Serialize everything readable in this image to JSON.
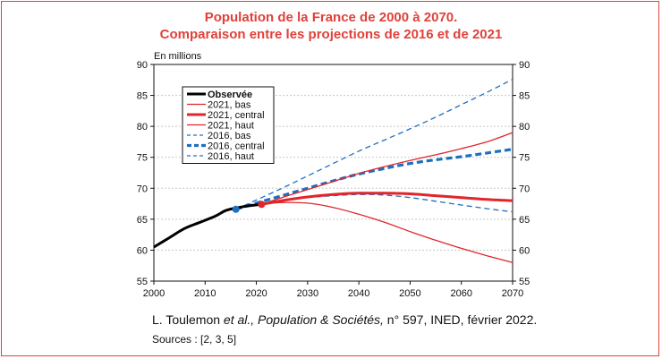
{
  "chart_data": {
    "type": "line",
    "title": "Population de la France de 2000 à 2070.",
    "subtitle": "Comparaison entre les projections de 2016 et de 2021",
    "ylabel": "En millions",
    "xlim": [
      2000,
      2070
    ],
    "ylim": [
      55,
      90
    ],
    "xticks": [
      "2000",
      "2010",
      "2020",
      "2030",
      "2040",
      "2050",
      "2060",
      "2070"
    ],
    "yticks": [
      "55",
      "60",
      "65",
      "70",
      "75",
      "80",
      "85",
      "90"
    ],
    "legend_position": "top-left",
    "series": [
      {
        "name": "Observée",
        "color": "#000000",
        "style": "solid",
        "weight": "thick",
        "x": [
          2000,
          2003,
          2006,
          2009,
          2012,
          2014,
          2016,
          2018,
          2021
        ],
        "y": [
          60.5,
          62.0,
          63.5,
          64.5,
          65.5,
          66.4,
          66.8,
          67.1,
          67.4
        ]
      },
      {
        "name": "2021, bas",
        "color": "#e0262b",
        "style": "solid",
        "weight": "thin",
        "x": [
          2021,
          2025,
          2030,
          2035,
          2040,
          2045,
          2050,
          2055,
          2060,
          2065,
          2070
        ],
        "y": [
          67.4,
          67.7,
          67.6,
          66.9,
          65.8,
          64.5,
          63.0,
          61.6,
          60.3,
          59.1,
          58.0
        ]
      },
      {
        "name": "2021, central",
        "color": "#e0262b",
        "style": "solid",
        "weight": "thick",
        "x": [
          2021,
          2025,
          2030,
          2035,
          2040,
          2045,
          2050,
          2055,
          2060,
          2065,
          2070
        ],
        "y": [
          67.4,
          68.0,
          68.6,
          69.0,
          69.2,
          69.2,
          69.1,
          68.8,
          68.5,
          68.2,
          68.0
        ]
      },
      {
        "name": "2021, haut",
        "color": "#e0262b",
        "style": "solid",
        "weight": "thin",
        "x": [
          2021,
          2025,
          2030,
          2035,
          2040,
          2045,
          2050,
          2055,
          2060,
          2065,
          2070
        ],
        "y": [
          67.4,
          68.5,
          69.8,
          71.1,
          72.4,
          73.5,
          74.5,
          75.4,
          76.4,
          77.5,
          79.0
        ]
      },
      {
        "name": "2016, bas",
        "color": "#1d6fc0",
        "style": "dashed",
        "weight": "thin",
        "x": [
          2016,
          2020,
          2025,
          2030,
          2035,
          2040,
          2045,
          2050,
          2055,
          2060,
          2065,
          2070
        ],
        "y": [
          66.6,
          67.3,
          68.0,
          68.5,
          68.8,
          69.0,
          68.9,
          68.5,
          67.9,
          67.3,
          66.7,
          66.2
        ]
      },
      {
        "name": "2016, central",
        "color": "#1d6fc0",
        "style": "dashed",
        "weight": "thick",
        "x": [
          2016,
          2020,
          2025,
          2030,
          2035,
          2040,
          2045,
          2050,
          2055,
          2060,
          2065,
          2070
        ],
        "y": [
          66.6,
          67.6,
          68.8,
          70.0,
          71.2,
          72.3,
          73.2,
          74.0,
          74.6,
          75.1,
          75.7,
          76.3
        ]
      },
      {
        "name": "2016, haut",
        "color": "#1d6fc0",
        "style": "dashed",
        "weight": "thin",
        "x": [
          2016,
          2020,
          2025,
          2030,
          2035,
          2040,
          2045,
          2050,
          2055,
          2060,
          2065,
          2070
        ],
        "y": [
          66.6,
          68.1,
          70.0,
          72.0,
          74.0,
          76.0,
          77.8,
          79.6,
          81.5,
          83.5,
          85.5,
          87.6
        ]
      }
    ],
    "markers": [
      {
        "x": 2016,
        "y": 66.6,
        "color": "#1d6fc0"
      },
      {
        "x": 2021,
        "y": 67.4,
        "color": "#e0262b"
      }
    ]
  },
  "source": {
    "author_prefix": "L. Toulemon ",
    "author_etal": "et al.,",
    "sep1": " ",
    "journal": "Population & Sociétés,",
    "rest": " n° 597, INED, février 2022.",
    "refs": "Sources : [2, 3, 5]"
  }
}
